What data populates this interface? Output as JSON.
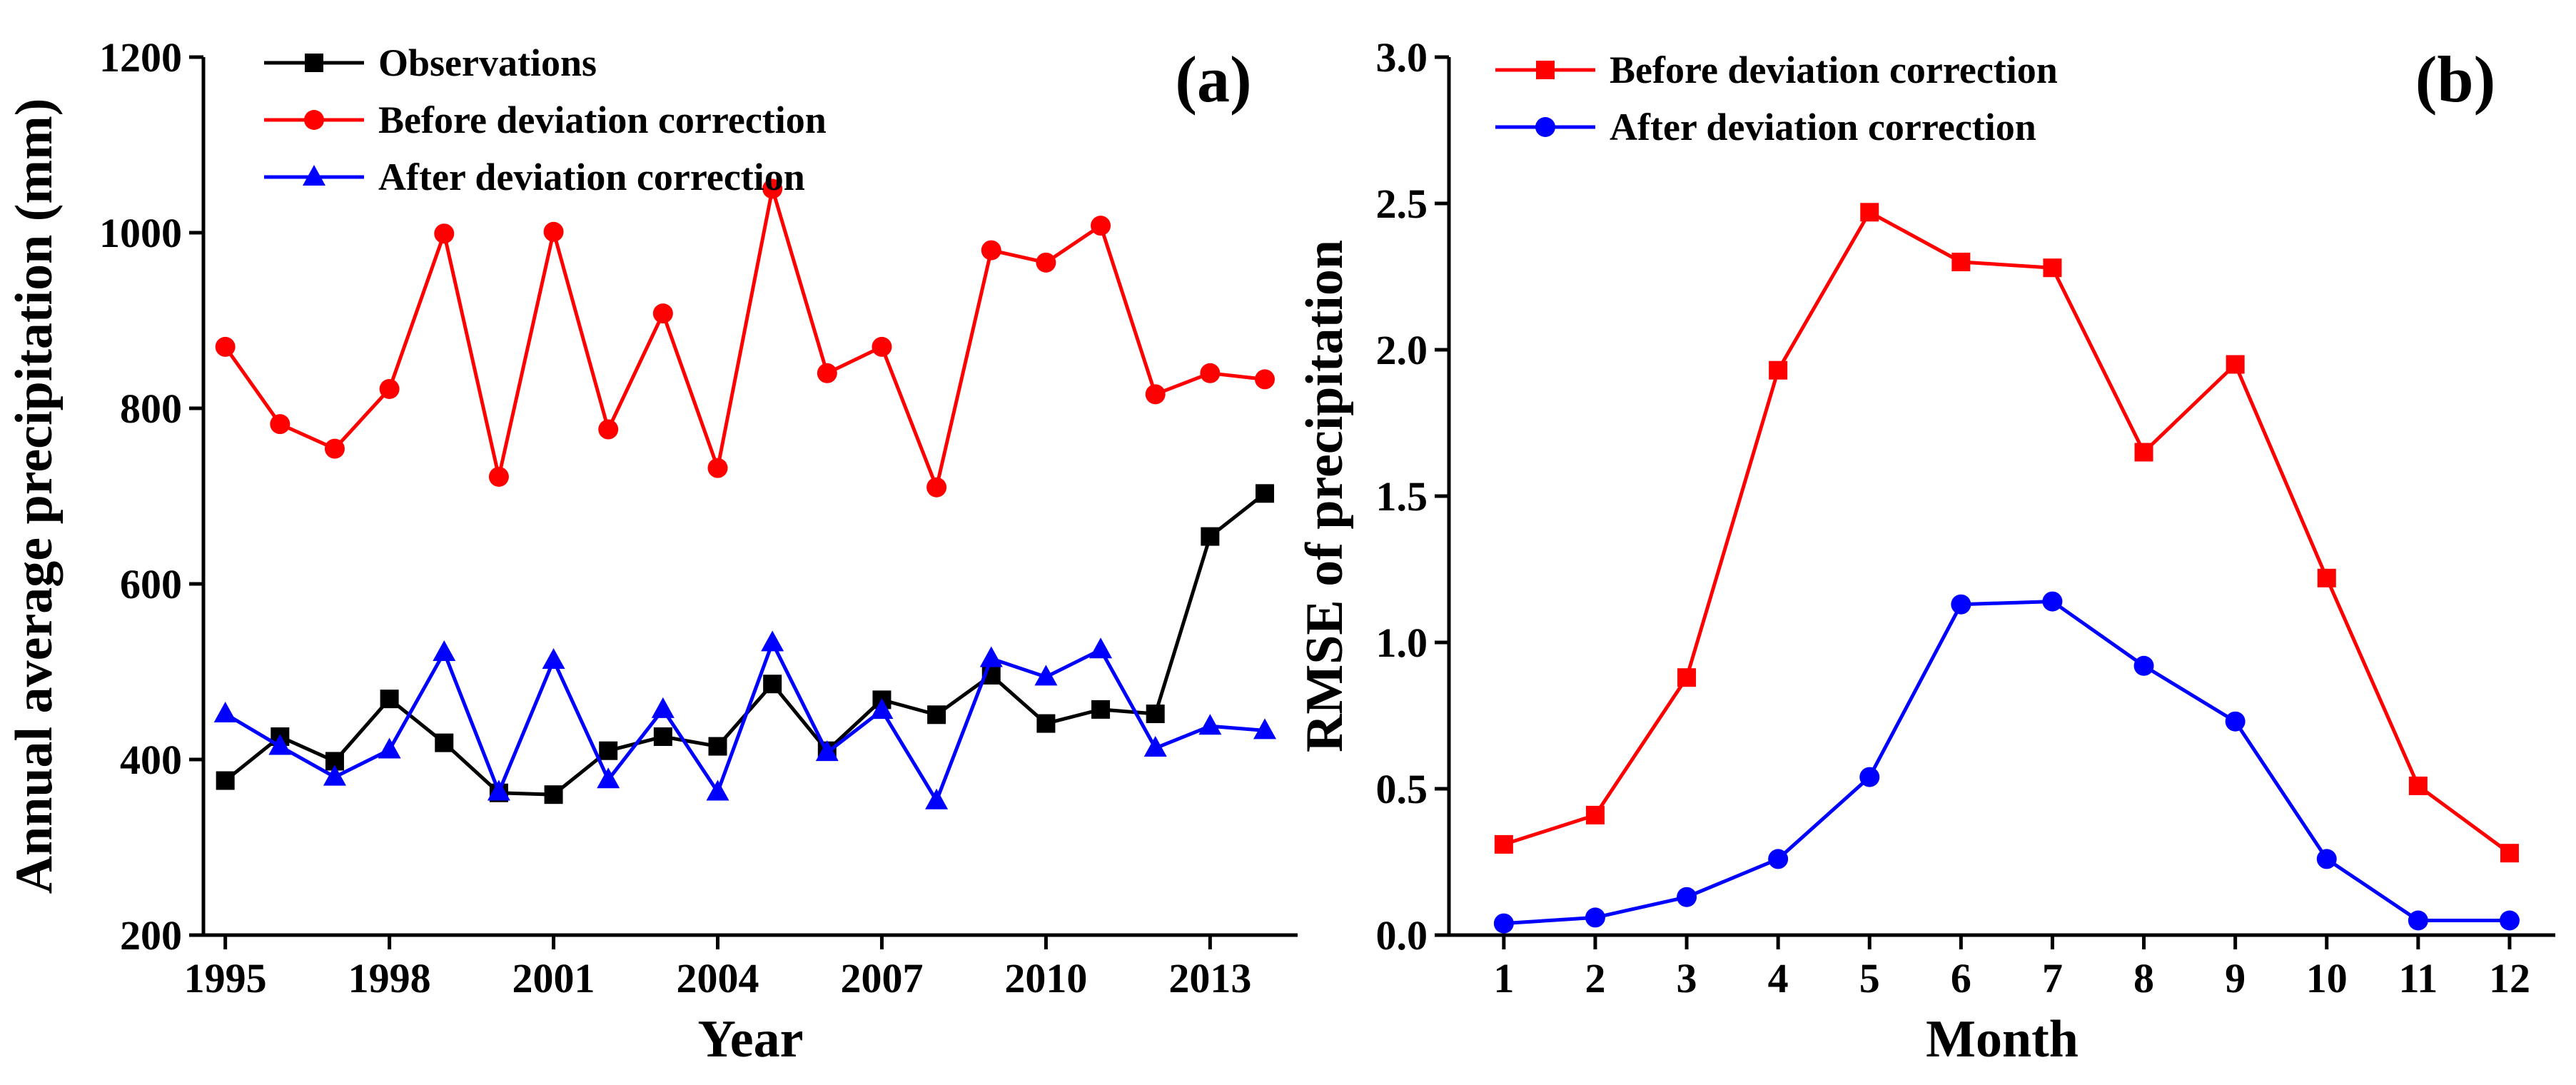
{
  "chart_data": [
    {
      "type": "line",
      "panel_label": "(a)",
      "xlabel": "Year",
      "ylabel": "Annual average precipitation (mm)",
      "xlim": [
        1994.6,
        2014.6
      ],
      "ylim": [
        200,
        1200
      ],
      "xticks": [
        1995,
        1998,
        2001,
        2004,
        2007,
        2010,
        2013
      ],
      "yticks": [
        200,
        400,
        600,
        800,
        1000,
        1200
      ],
      "legend_position": "top-left",
      "x": [
        1995,
        1996,
        1997,
        1998,
        1999,
        2000,
        2001,
        2002,
        2003,
        2004,
        2005,
        2006,
        2007,
        2008,
        2009,
        2010,
        2011,
        2012,
        2013,
        2014
      ],
      "series": [
        {
          "name": "Observations",
          "color": "#000000",
          "marker": "square",
          "values": [
            376,
            426,
            398,
            469,
            419,
            362,
            360,
            410,
            426,
            415,
            486,
            410,
            468,
            451,
            496,
            441,
            457,
            452,
            654,
            703
          ]
        },
        {
          "name": "Before deviation correction",
          "color": "#ff0000",
          "marker": "circle",
          "values": [
            870,
            782,
            754,
            822,
            999,
            722,
            1001,
            776,
            908,
            732,
            1050,
            840,
            870,
            710,
            980,
            966,
            1008,
            816,
            840,
            833
          ]
        },
        {
          "name": "After deviation correction",
          "color": "#0000ff",
          "marker": "triangle",
          "values": [
            452,
            415,
            380,
            411,
            522,
            363,
            513,
            377,
            457,
            363,
            533,
            408,
            456,
            353,
            515,
            494,
            525,
            413,
            438,
            433
          ]
        }
      ]
    },
    {
      "type": "line",
      "panel_label": "(b)",
      "xlabel": "Month",
      "ylabel": "RMSE of precipitation",
      "xlim": [
        0.4,
        12.5
      ],
      "ylim": [
        0,
        3
      ],
      "xticks": [
        1,
        2,
        3,
        4,
        5,
        6,
        7,
        8,
        9,
        10,
        11,
        12
      ],
      "yticks": [
        0.0,
        0.5,
        1.0,
        1.5,
        2.0,
        2.5,
        3.0
      ],
      "ytick_labels": [
        "0.0",
        "0.5",
        "1.0",
        "1.5",
        "2.0",
        "2.5",
        "3.0"
      ],
      "legend_position": "top-left",
      "x": [
        1,
        2,
        3,
        4,
        5,
        6,
        7,
        8,
        9,
        10,
        11,
        12
      ],
      "series": [
        {
          "name": "Before deviation correction",
          "color": "#ff0000",
          "marker": "square",
          "values": [
            0.31,
            0.41,
            0.88,
            1.93,
            2.47,
            2.3,
            2.28,
            1.65,
            1.95,
            1.22,
            0.51,
            0.28
          ]
        },
        {
          "name": "After deviation correction",
          "color": "#0000ff",
          "marker": "circle",
          "values": [
            0.04,
            0.06,
            0.13,
            0.26,
            0.54,
            1.13,
            1.14,
            0.92,
            0.73,
            0.26,
            0.05,
            0.05
          ]
        }
      ]
    }
  ]
}
